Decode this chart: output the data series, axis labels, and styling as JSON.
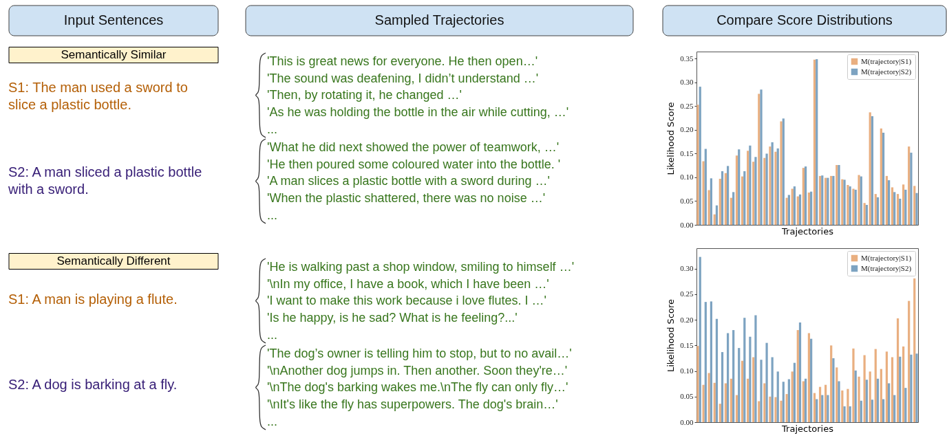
{
  "chart_data": [
    {
      "type": "other",
      "title": "Input Sentences",
      "annotations": [
        "Semantically Similar",
        "S1: The man used a sword to slice a plastic bottle.",
        "S2: A man sliced a plastic bottle with a sword.",
        "Semantically Different",
        "S1: A man is playing a flute.",
        "S2: A dog is barking at a fly."
      ]
    },
    {
      "type": "other",
      "title": "Sampled Trajectories",
      "annotations": [
        "'This is great news for everyone. He then open…'",
        "'The sound was deafening, I didn’t understand …'",
        "'Then, by rotating it, he changed …'",
        "'As he was holding the bottle in the air while cutting, …'",
        "...",
        "'What he did next showed the power of teamwork, …'",
        "'He then poured some coloured water into the bottle. '",
        "'A man slices a plastic bottle with a sword during …'",
        "'When the plastic shattered, there was no noise …'",
        "...",
        "'He is walking past a shop window, smiling to himself …'",
        "'\\nIn my office, I have a book, which I have been …'",
        "'I want to make this work because i love flutes. I …'",
        "'Is he happy, is he sad? What is he feeling?...'",
        "...",
        "'The dog’s owner is telling him to stop, but to no avail…'",
        "'\\nAnother dog jumps in. Then another. Soon they're…'",
        "'\\nThe dog's barking wakes me.\\nThe fly can only fly…'",
        "'\\nIt's like the fly has superpowers. The dog's brain…'",
        "..."
      ]
    },
    {
      "type": "bar",
      "title": "Compare Score Distributions",
      "xlabel": "Trajectories",
      "ylabel": "Likelihood Score",
      "tick_labels": "y",
      "legend": "top right",
      "categories": [
        null,
        null,
        null,
        null,
        null,
        null,
        null,
        null,
        null,
        null,
        null,
        null,
        null,
        null,
        null,
        null,
        null,
        null,
        null,
        null,
        null,
        null,
        null,
        null,
        null,
        null,
        null,
        null,
        null,
        null,
        null,
        null,
        null,
        null,
        null,
        null,
        null,
        null,
        null,
        null
      ],
      "ylim": [
        0,
        0.365
      ],
      "yticks": [
        {
          "value": 0,
          "label": "0.00"
        },
        0.05,
        {
          "value": 0.1,
          "label": "0.10"
        },
        0.15,
        {
          "value": 0.2,
          "label": "0.20"
        },
        0.25,
        {
          "value": 0.3,
          "label": "0.30"
        },
        0.35
      ],
      "series": [
        {
          "name": "M(trajectory|S1)",
          "color": "#e9af80",
          "values": [
            0.253,
            0.134,
            0.073,
            0.022,
            0.097,
            0.109,
            0.057,
            0.146,
            0.102,
            0.156,
            0.133,
            0.276,
            0.141,
            0.165,
            0.154,
            0.218,
            0.057,
            0.076,
            0.06,
            0.12,
            0.068,
            0.348,
            0.103,
            0.099,
            0.103,
            0.126,
            0.096,
            0.084,
            0.076,
            0.105,
            0.046,
            0.237,
            0.065,
            0.203,
            0.103,
            0.079,
            0.065,
            0.085,
            0.165,
            0.082
          ]
        },
        {
          "name": "M(trajectory|S2)",
          "color": "#7da3c1",
          "values": [
            0.291,
            0.16,
            0.098,
            0.041,
            0.113,
            0.124,
            0.069,
            0.159,
            0.113,
            0.167,
            0.143,
            0.285,
            0.15,
            0.174,
            0.161,
            0.224,
            0.063,
            0.081,
            0.064,
            0.123,
            0.07,
            0.349,
            0.104,
            0.099,
            0.103,
            0.126,
            0.095,
            0.081,
            0.074,
            0.102,
            0.042,
            0.229,
            0.058,
            0.194,
            0.094,
            0.069,
            0.055,
            0.074,
            0.152,
            0.067
          ]
        }
      ]
    },
    {
      "type": "bar",
      "xlabel": "Trajectories",
      "ylabel": "Likelihood Score",
      "tick_labels": "y",
      "legend": "top right",
      "categories": [
        null,
        null,
        null,
        null,
        null,
        null,
        null,
        null,
        null,
        null,
        null,
        null,
        null,
        null,
        null,
        null,
        null,
        null,
        null,
        null,
        null,
        null,
        null,
        null,
        null,
        null,
        null,
        null,
        null,
        null,
        null,
        null,
        null,
        null,
        null,
        null,
        null,
        null,
        null,
        null
      ],
      "ylim": [
        0,
        0.34
      ],
      "yticks": [
        {
          "value": 0,
          "label": "0.00"
        },
        0.05,
        {
          "value": 0.1,
          "label": "0.10"
        },
        0.15,
        {
          "value": 0.2,
          "label": "0.20"
        },
        0.25,
        {
          "value": 0.3,
          "label": "0.30"
        }
      ],
      "series": [
        {
          "name": "M(trajectory|S1)",
          "color": "#e9af80",
          "values": [
            0.149,
            0.073,
            0.096,
            0.077,
            0.036,
            0.076,
            0.085,
            0.053,
            0.12,
            0.085,
            0.127,
            0.041,
            0.076,
            0.05,
            0.049,
            0.042,
            0.055,
            0.099,
            0.18,
            0.08,
            0.174,
            0.057,
            0.069,
            0.073,
            0.15,
            0.107,
            0.062,
            0.065,
            0.144,
            0.089,
            0.131,
            0.099,
            0.143,
            0.104,
            0.138,
            0.127,
            0.203,
            0.148,
            0.237,
            0.281
          ]
        },
        {
          "name": "M(trajectory|S2)",
          "color": "#7da3c1",
          "values": [
            0.323,
            0.235,
            0.236,
            0.202,
            0.137,
            0.174,
            0.18,
            0.145,
            0.204,
            0.167,
            0.209,
            0.122,
            0.155,
            0.127,
            0.099,
            0.079,
            0.084,
            0.116,
            0.195,
            0.085,
            0.163,
            0.045,
            0.053,
            0.053,
            0.125,
            0.08,
            0.031,
            0.031,
            0.101,
            0.042,
            0.083,
            0.044,
            0.085,
            0.045,
            0.076,
            0.053,
            0.128,
            0.067,
            0.132,
            0.134
          ]
        }
      ]
    }
  ]
}
